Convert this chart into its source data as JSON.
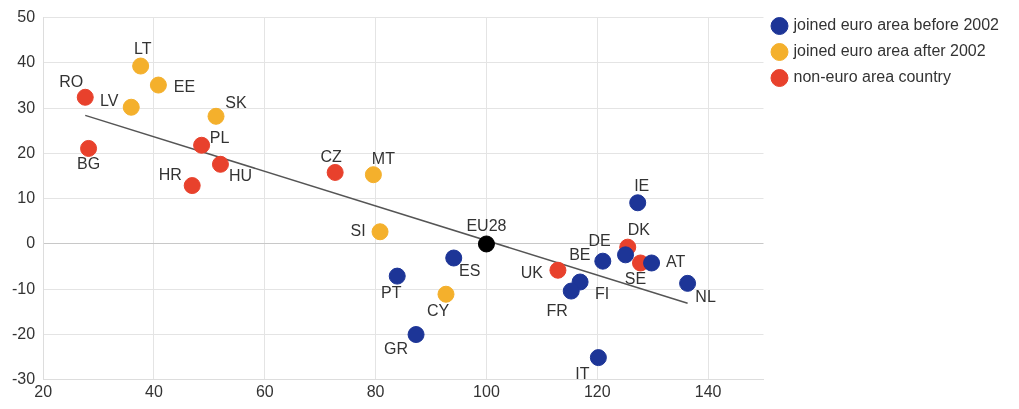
{
  "chart_data": {
    "type": "scatter",
    "xlim": [
      20,
      150
    ],
    "xticks": [
      20,
      40,
      60,
      80,
      100,
      120,
      140
    ],
    "ylim": [
      -30,
      50
    ],
    "yticks": [
      -30,
      -20,
      -10,
      0,
      10,
      20,
      30,
      40,
      50
    ],
    "grid": true,
    "legend": "top right",
    "marker": "circle",
    "series": [
      {
        "name": "joined euro area before 2002",
        "color": "#1d3597",
        "x": [
          94.1,
          83.9,
          87.3,
          121.0,
          116.9,
          115.3,
          127.3,
          125.1,
          129.8,
          136.3,
          120.2
        ],
        "values": [
          -3.1,
          -7.1,
          -20,
          -3.8,
          -8.4,
          -10.4,
          9.1,
          -2.4,
          -4.2,
          -8.7,
          -25.1
        ]
      },
      {
        "name": "joined euro area after 2002",
        "color": "#f4b02c",
        "x": [
          35.9,
          37.6,
          40.8,
          51.2,
          79.6,
          80.8,
          92.7
        ],
        "values": [
          30.2,
          39.3,
          35.1,
          28.2,
          15.3,
          2.7,
          -11.1
        ]
      },
      {
        "name": "non-euro area country",
        "color": "#e8412c",
        "x": [
          27.6,
          28.2,
          48.6,
          52.0,
          46.9,
          72.7,
          112.9,
          125.5,
          127.8
        ],
        "values": [
          32.4,
          21.1,
          21.8,
          17.6,
          12.9,
          15.8,
          -5.8,
          -0.7,
          -4.2
        ]
      },
      {
        "color": "#000000",
        "x": [
          100
        ],
        "values": [
          0
        ]
      },
      {
        "type": "line",
        "color": "#555555",
        "marker": "none",
        "x": [
          27.6,
          136.3
        ],
        "values": [
          28.4,
          -13.1
        ]
      }
    ],
    "annotations": [
      {
        "text": "RO",
        "x": 27.6,
        "y": 32.4
      },
      {
        "text": "BG",
        "x": 28.2,
        "y": 21.1
      },
      {
        "text": "LV",
        "x": 35.9,
        "y": 30.2
      },
      {
        "text": "LT",
        "x": 37.6,
        "y": 39.3
      },
      {
        "text": "EE",
        "x": 40.8,
        "y": 35.1
      },
      {
        "text": "SK",
        "x": 51.2,
        "y": 28.2
      },
      {
        "text": "PL",
        "x": 48.6,
        "y": 21.8
      },
      {
        "text": "HU",
        "x": 52.0,
        "y": 17.6
      },
      {
        "text": "HR",
        "x": 46.9,
        "y": 12.9
      },
      {
        "text": "CZ",
        "x": 72.7,
        "y": 15.8
      },
      {
        "text": "MT",
        "x": 79.6,
        "y": 15.3
      },
      {
        "text": "SI",
        "x": 80.8,
        "y": 2.7
      },
      {
        "text": "EU28",
        "x": 100,
        "y": 0
      },
      {
        "text": "ES",
        "x": 94.1,
        "y": -3.1
      },
      {
        "text": "PT",
        "x": 83.9,
        "y": -7.1
      },
      {
        "text": "CY",
        "x": 92.7,
        "y": -11.1
      },
      {
        "text": "GR",
        "x": 87.3,
        "y": -20
      },
      {
        "text": "UK",
        "x": 112.9,
        "y": -5.8
      },
      {
        "text": "BE",
        "x": 121.0,
        "y": -3.8
      },
      {
        "text": "FI",
        "x": 116.9,
        "y": -8.4
      },
      {
        "text": "FR",
        "x": 115.3,
        "y": -10.4
      },
      {
        "text": "IE",
        "x": 127.3,
        "y": 9.1
      },
      {
        "text": "DE",
        "x": 125.1,
        "y": -2.4
      },
      {
        "text": "DK",
        "x": 125.5,
        "y": -0.7
      },
      {
        "text": "SE",
        "x": 127.8,
        "y": -4.2
      },
      {
        "text": "AT",
        "x": 129.8,
        "y": -4.2
      },
      {
        "text": "NL",
        "x": 136.3,
        "y": -8.7
      },
      {
        "text": "IT",
        "x": 120.2,
        "y": -25.1
      }
    ]
  }
}
